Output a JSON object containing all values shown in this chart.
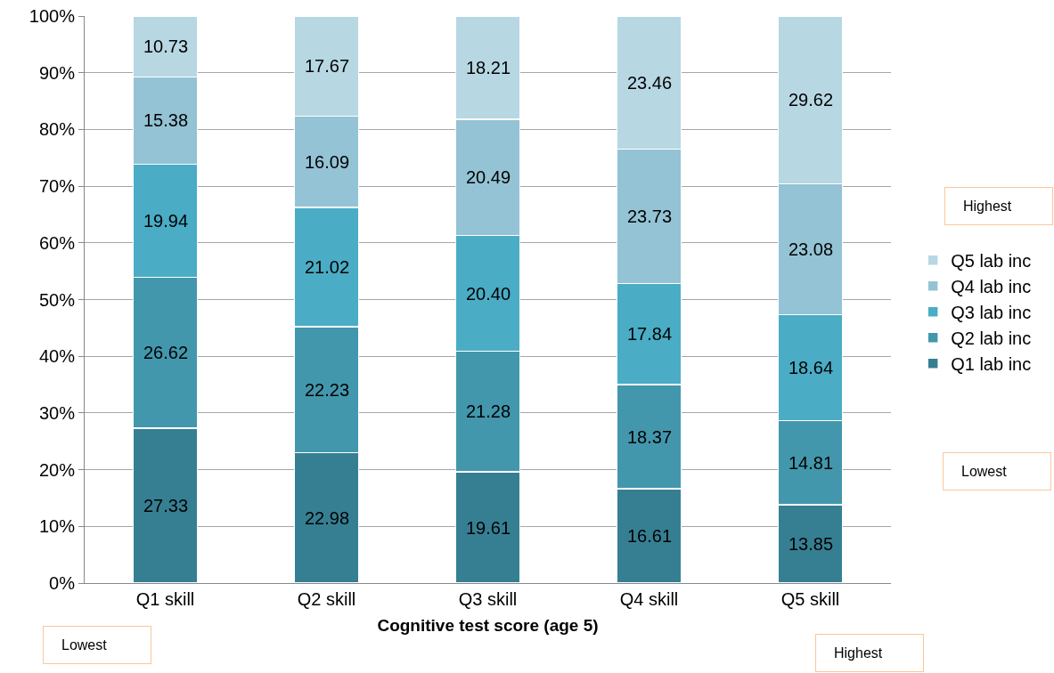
{
  "chart_data": {
    "type": "bar",
    "stacked": true,
    "xlabel": "Cognitive test score (age 5)",
    "categories": [
      "Q1 skill",
      "Q2 skill",
      "Q3 skill",
      "Q4 skill",
      "Q5 skill"
    ],
    "series": [
      {
        "name": "Q1 lab inc",
        "color": "#367f93",
        "values": [
          27.33,
          22.98,
          19.61,
          16.61,
          13.85
        ],
        "value_labels": [
          "27.33",
          "22.98",
          "19.61",
          "16.61",
          "13.85"
        ]
      },
      {
        "name": "Q2 lab inc",
        "color": "#4397ac",
        "values": [
          26.62,
          22.23,
          21.28,
          18.37,
          14.81
        ],
        "value_labels": [
          "26.62",
          "22.23",
          "21.28",
          "18.37",
          "14.81"
        ]
      },
      {
        "name": "Q3 lab inc",
        "color": "#4aacc5",
        "values": [
          19.94,
          21.02,
          20.4,
          17.84,
          18.64
        ],
        "value_labels": [
          "19.94",
          "21.02",
          "20.40",
          "17.84",
          "18.64"
        ]
      },
      {
        "name": "Q4 lab inc",
        "color": "#93c3d5",
        "values": [
          15.38,
          16.09,
          20.49,
          23.73,
          23.08
        ],
        "value_labels": [
          "15.38",
          "16.09",
          "20.49",
          "23.73",
          "23.08"
        ]
      },
      {
        "name": "Q5 lab inc",
        "color": "#b7d7e3",
        "values": [
          10.73,
          17.67,
          18.21,
          23.46,
          29.62
        ],
        "value_labels": [
          "10.73",
          "17.67",
          "18.21",
          "23.46",
          "29.62"
        ]
      }
    ],
    "ylim": [
      0,
      100
    ],
    "yticks": [
      {
        "value": 0,
        "label": "0%"
      },
      {
        "value": 10,
        "label": "10%"
      },
      {
        "value": 20,
        "label": "20%"
      },
      {
        "value": 30,
        "label": "30%"
      },
      {
        "value": 40,
        "label": "40%"
      },
      {
        "value": 50,
        "label": "50%"
      },
      {
        "value": 60,
        "label": "60%"
      },
      {
        "value": 70,
        "label": "70%"
      },
      {
        "value": 80,
        "label": "80%"
      },
      {
        "value": 90,
        "label": "90%"
      },
      {
        "value": 100,
        "label": "100%"
      }
    ],
    "grid": "y",
    "legend": "right",
    "annotations": [
      "Highest",
      "Lowest",
      "Lowest",
      "Highest"
    ]
  }
}
